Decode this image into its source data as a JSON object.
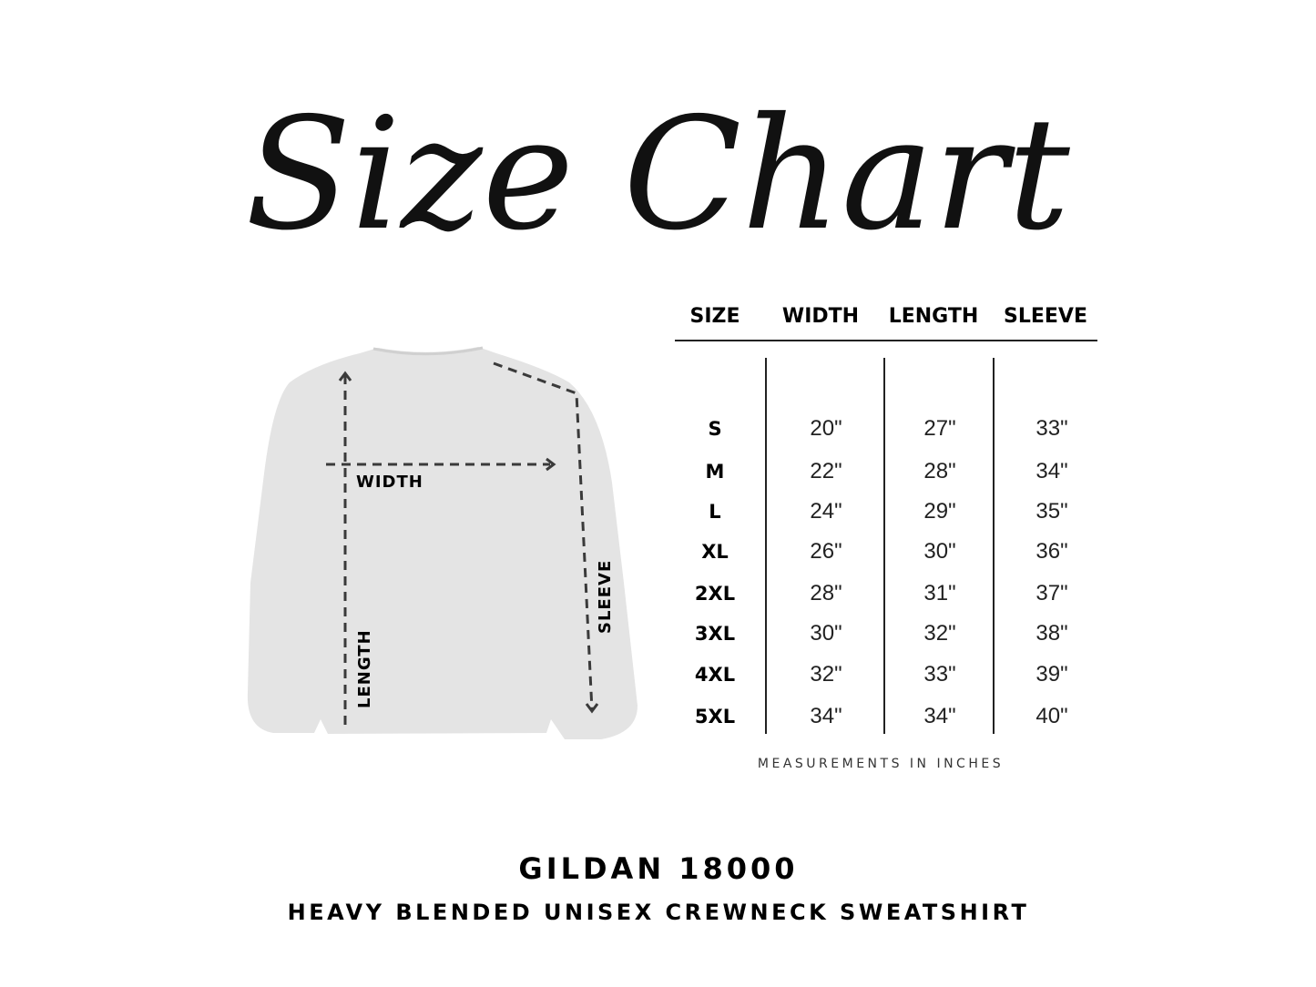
{
  "title": "Size Chart",
  "diagram_labels": {
    "width": "WIDTH",
    "length": "LENGTH",
    "sleeve": "SLEEVE"
  },
  "table": {
    "headers": [
      "SIZE",
      "WIDTH",
      "LENGTH",
      "SLEEVE"
    ],
    "rows": [
      [
        "S",
        "20\"",
        "27\"",
        "33\""
      ],
      [
        "M",
        "22\"",
        "28\"",
        "34\""
      ],
      [
        "L",
        "24\"",
        "29\"",
        "35\""
      ],
      [
        "XL",
        "26\"",
        "30\"",
        "36\""
      ],
      [
        "2XL",
        "28\"",
        "31\"",
        "37\""
      ],
      [
        "3XL",
        "30\"",
        "32\"",
        "38\""
      ],
      [
        "4XL",
        "32\"",
        "33\"",
        "39\""
      ],
      [
        "5XL",
        "34\"",
        "34\"",
        "40\""
      ]
    ],
    "note": "MEASUREMENTS IN INCHES"
  },
  "product": {
    "model": "GILDAN 18000",
    "description": "HEAVY BLENDED UNISEX CREWNECK SWEATSHIRT"
  },
  "colors": {
    "garment": "#e4e4e4",
    "ink": "#111111",
    "arrow": "#3a3a3a"
  }
}
